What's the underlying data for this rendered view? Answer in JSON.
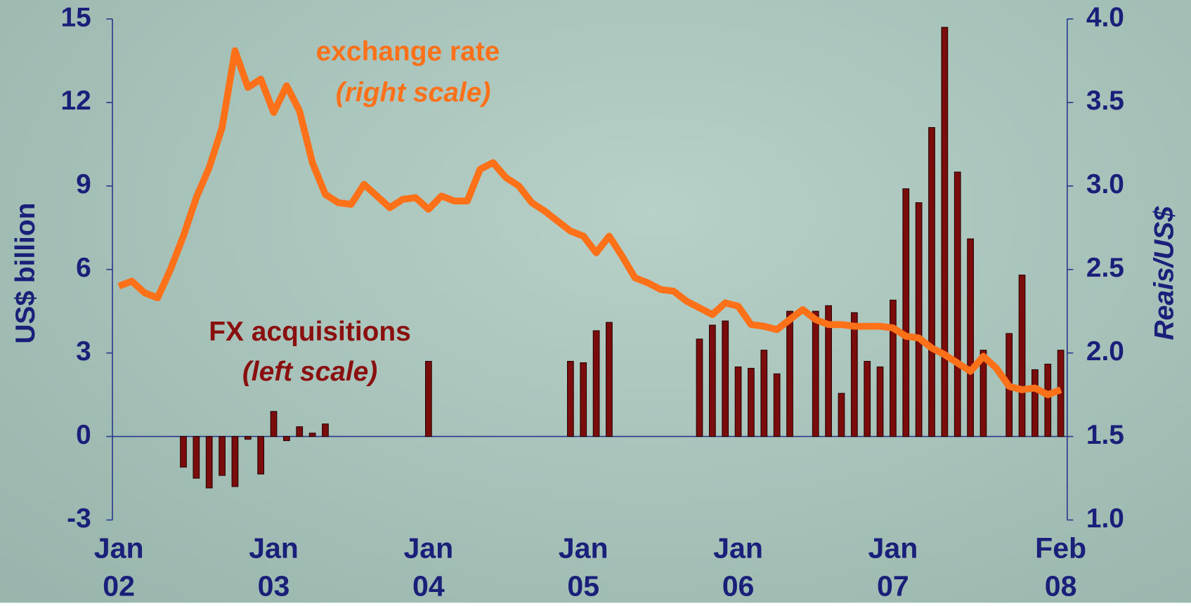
{
  "chart_data": {
    "type": "bar-line",
    "categories": [
      "Jan\n02",
      null,
      null,
      null,
      null,
      null,
      null,
      null,
      null,
      null,
      null,
      null,
      "Jan\n03",
      null,
      null,
      null,
      null,
      null,
      null,
      null,
      null,
      null,
      null,
      null,
      "Jan\n04",
      null,
      null,
      null,
      null,
      null,
      null,
      null,
      null,
      null,
      null,
      null,
      "Jan\n05",
      null,
      null,
      null,
      null,
      null,
      null,
      null,
      null,
      null,
      null,
      null,
      "Jan\n06",
      null,
      null,
      null,
      null,
      null,
      null,
      null,
      null,
      null,
      null,
      null,
      "Jan\n07",
      null,
      null,
      null,
      null,
      null,
      null,
      null,
      null,
      null,
      null,
      null,
      null,
      "Feb\n08"
    ],
    "series": [
      {
        "name": "FX acquisitions",
        "type": "bar",
        "color": "#7a0c0c",
        "values": [
          null,
          null,
          null,
          null,
          null,
          -1.1,
          -1.5,
          -1.85,
          -1.4,
          -1.8,
          -0.1,
          -1.35,
          0.9,
          -0.15,
          0.35,
          0.12,
          0.45,
          null,
          null,
          null,
          null,
          null,
          null,
          null,
          2.7,
          null,
          null,
          null,
          null,
          null,
          null,
          null,
          null,
          null,
          null,
          2.7,
          2.65,
          3.8,
          4.1,
          null,
          null,
          null,
          null,
          null,
          null,
          3.5,
          4.0,
          4.15,
          2.5,
          2.45,
          3.1,
          2.25,
          4.5,
          null,
          4.5,
          4.7,
          1.55,
          4.45,
          2.7,
          2.5,
          4.9,
          8.9,
          8.4,
          11.1,
          14.7,
          9.5,
          7.1,
          3.1,
          null,
          3.7,
          5.8,
          2.4,
          2.6,
          3.1
        ]
      },
      {
        "name": "exchange rate",
        "type": "line",
        "axis": "y2",
        "color": "#ff7119",
        "values": [
          2.4,
          2.43,
          2.36,
          2.33,
          2.5,
          2.7,
          2.93,
          3.11,
          3.35,
          3.81,
          3.59,
          3.64,
          3.44,
          3.6,
          3.45,
          3.14,
          2.95,
          2.9,
          2.89,
          3.01,
          2.94,
          2.87,
          2.92,
          2.93,
          2.86,
          2.94,
          2.91,
          2.91,
          3.1,
          3.14,
          3.05,
          3.0,
          2.9,
          2.85,
          2.79,
          2.73,
          2.7,
          2.6,
          2.7,
          2.58,
          2.45,
          2.42,
          2.38,
          2.37,
          2.31,
          2.27,
          2.23,
          2.3,
          2.28,
          2.17,
          2.16,
          2.14,
          2.2,
          2.26,
          2.2,
          2.17,
          2.17,
          2.16,
          2.16,
          2.16,
          2.15,
          2.1,
          2.09,
          2.03,
          1.99,
          1.94,
          1.89,
          1.98,
          1.91,
          1.8,
          1.78,
          1.79,
          1.75,
          1.78
        ]
      }
    ],
    "annotations": [
      "exchange rate",
      "(right scale)",
      "FX acquisitions",
      "(left scale)"
    ],
    "ylabel": "US$ billion",
    "y2label": "Reais/US$",
    "ylim": [
      -3,
      15
    ],
    "yticks": [
      -3,
      0,
      3,
      6,
      9,
      12,
      15
    ],
    "y2lim": [
      1.0,
      4.0
    ],
    "y2ticks": [
      {
        "value": 1.0,
        "label": "1.0"
      },
      1.5,
      {
        "value": 2.0,
        "label": "2.0"
      },
      2.5,
      {
        "value": 3.0,
        "label": "3.0"
      },
      3.5,
      {
        "value": 4.0,
        "label": "4.0"
      }
    ]
  }
}
